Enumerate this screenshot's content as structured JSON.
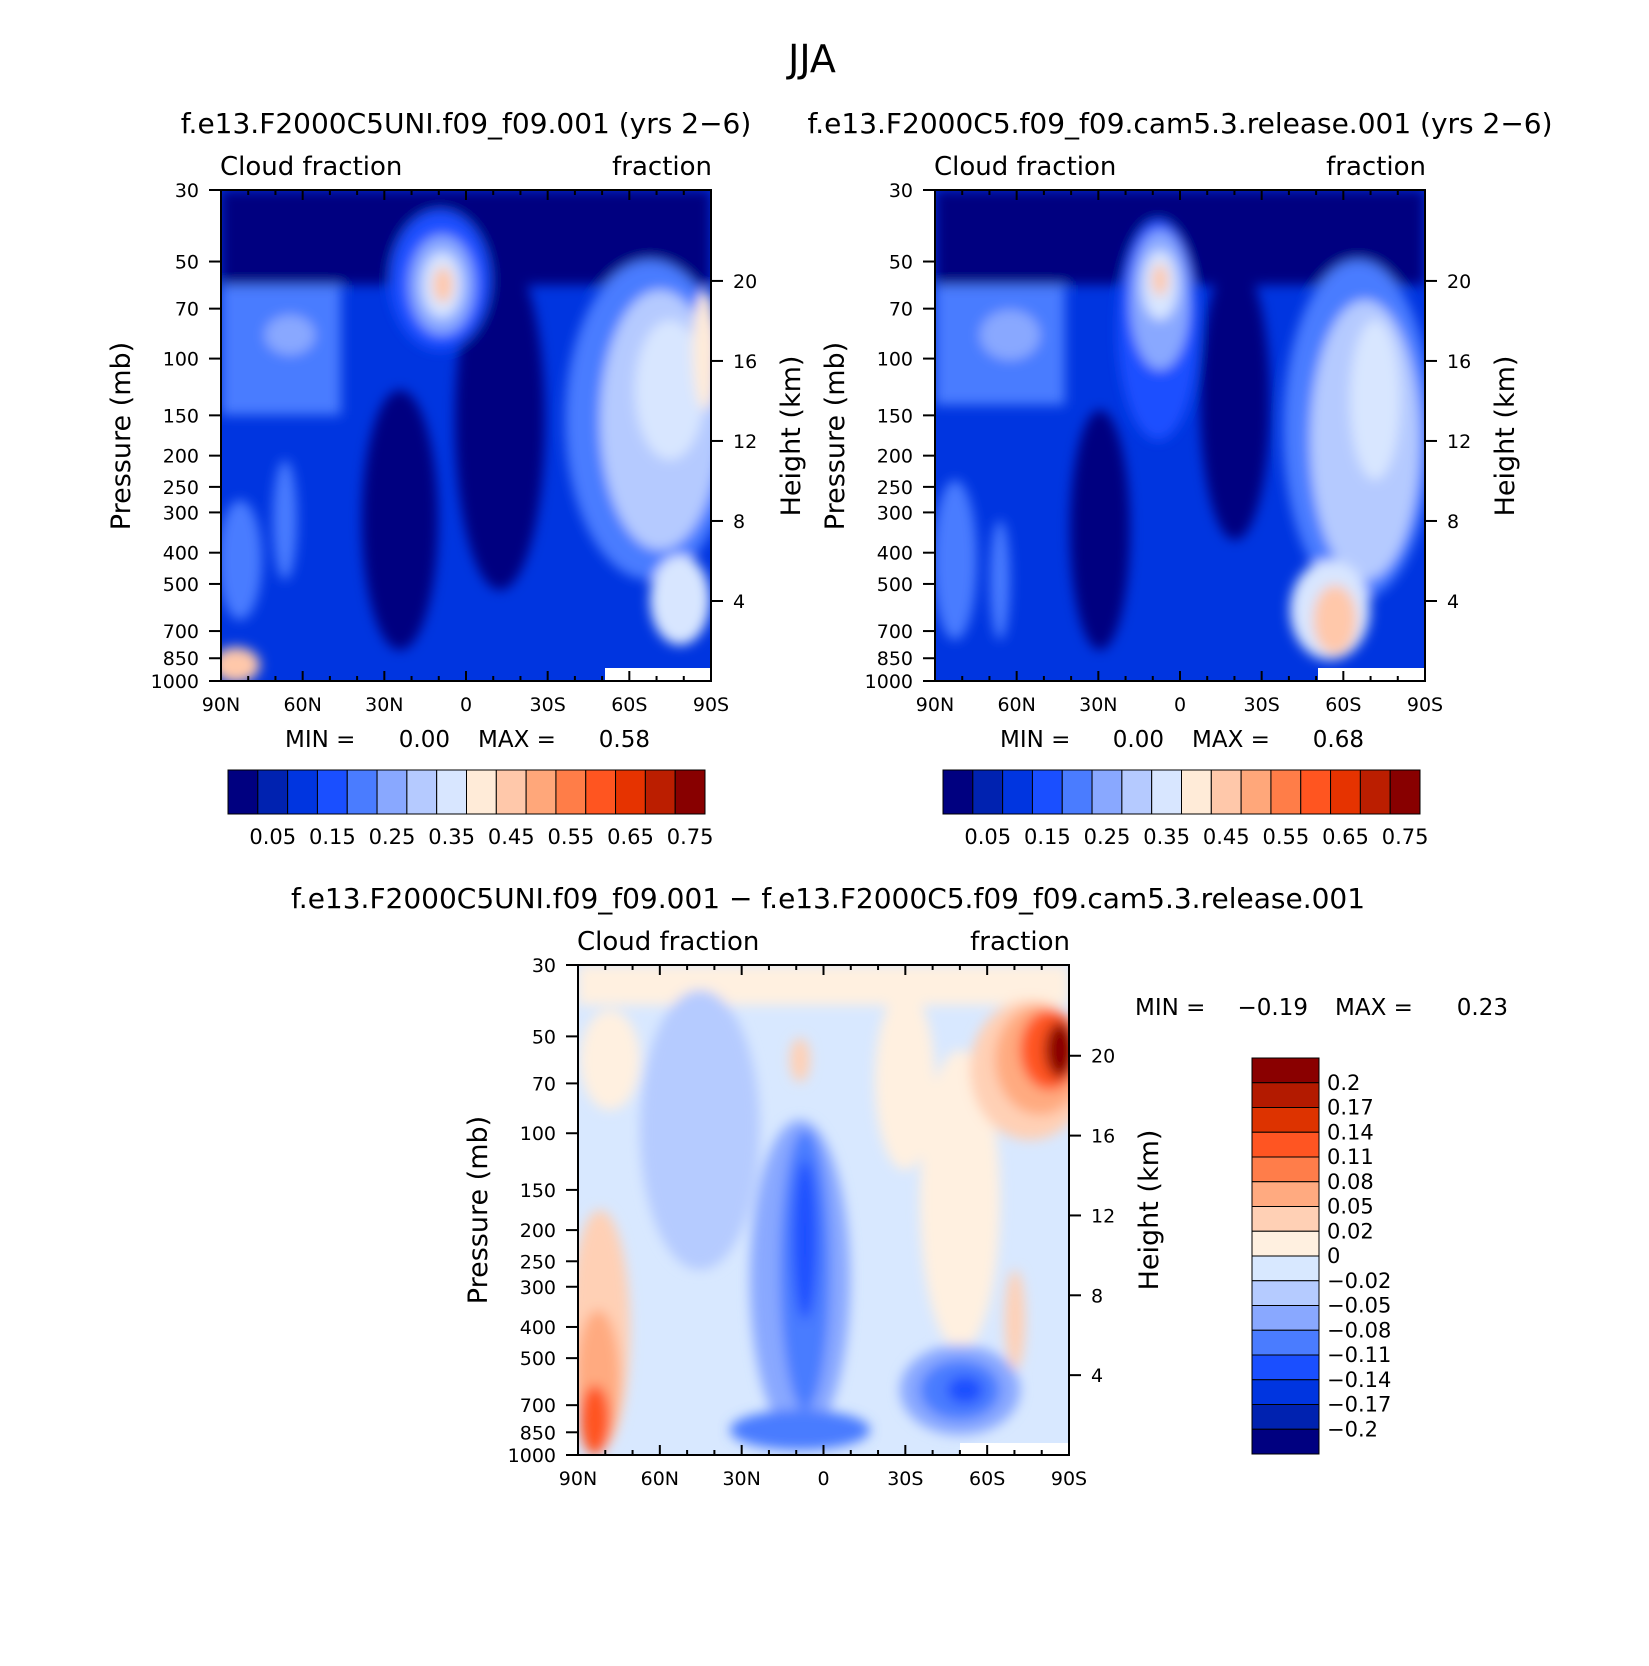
{
  "figure": {
    "title": "JJA"
  },
  "chart_data": [
    {
      "type": "heatmap",
      "title": "f.e13.F2000C5UNI.f09_f09.001 (yrs 2−6)",
      "left_subtitle": "Cloud fraction",
      "right_subtitle": "fraction",
      "ylabel": "Pressure (mb)",
      "y2label": "Height (km)",
      "xticks": [
        "90N",
        "60N",
        "30N",
        "0",
        "30S",
        "60S",
        "90S"
      ],
      "yticks": [
        "30",
        "50",
        "70",
        "100",
        "150",
        "200",
        "250",
        "300",
        "400",
        "500",
        "700",
        "850",
        "1000"
      ],
      "y2ticks": [
        "20",
        "16",
        "12",
        "8",
        "4"
      ],
      "stats": {
        "min_label": "MIN =",
        "min": "0.00",
        "max_label": "MAX =",
        "max": "0.58"
      },
      "colorbar": {
        "orientation": "horizontal",
        "labels": [
          "0.05",
          "0.15",
          "0.25",
          "0.35",
          "0.45",
          "0.55",
          "0.65",
          "0.75"
        ],
        "colors": [
          "#000080",
          "#0022b0",
          "#0035e0",
          "#1a4fff",
          "#4a7cff",
          "#89a8ff",
          "#b5caff",
          "#d8e6ff",
          "#ffebd8",
          "#ffc8aa",
          "#ffa77a",
          "#ff7d48",
          "#ff5520",
          "#e63300",
          "#bb1e00",
          "#880000"
        ]
      }
    },
    {
      "type": "heatmap",
      "title": "f.e13.F2000C5.f09_f09.cam5.3.release.001 (yrs 2−6)",
      "left_subtitle": "Cloud fraction",
      "right_subtitle": "fraction",
      "ylabel": "Pressure (mb)",
      "y2label": "Height (km)",
      "xticks": [
        "90N",
        "60N",
        "30N",
        "0",
        "30S",
        "60S",
        "90S"
      ],
      "yticks": [
        "30",
        "50",
        "70",
        "100",
        "150",
        "200",
        "250",
        "300",
        "400",
        "500",
        "700",
        "850",
        "1000"
      ],
      "y2ticks": [
        "20",
        "16",
        "12",
        "8",
        "4"
      ],
      "stats": {
        "min_label": "MIN =",
        "min": "0.00",
        "max_label": "MAX =",
        "max": "0.68"
      },
      "colorbar": {
        "orientation": "horizontal",
        "labels": [
          "0.05",
          "0.15",
          "0.25",
          "0.35",
          "0.45",
          "0.55",
          "0.65",
          "0.75"
        ],
        "colors": [
          "#000080",
          "#0022b0",
          "#0035e0",
          "#1a4fff",
          "#4a7cff",
          "#89a8ff",
          "#b5caff",
          "#d8e6ff",
          "#ffebd8",
          "#ffc8aa",
          "#ffa77a",
          "#ff7d48",
          "#ff5520",
          "#e63300",
          "#bb1e00",
          "#880000"
        ]
      }
    },
    {
      "type": "heatmap",
      "title": "f.e13.F2000C5UNI.f09_f09.001 − f.e13.F2000C5.f09_f09.cam5.3.release.001",
      "left_subtitle": "Cloud fraction",
      "right_subtitle": "fraction",
      "ylabel": "Pressure (mb)",
      "y2label": "Height (km)",
      "xticks": [
        "90N",
        "60N",
        "30N",
        "0",
        "30S",
        "60S",
        "90S"
      ],
      "yticks": [
        "30",
        "50",
        "70",
        "100",
        "150",
        "200",
        "250",
        "300",
        "400",
        "500",
        "700",
        "850",
        "1000"
      ],
      "y2ticks": [
        "20",
        "16",
        "12",
        "8",
        "4"
      ],
      "stats": {
        "min_label": "MIN =",
        "min": "−0.19",
        "max_label": "MAX =",
        "max": "0.23"
      },
      "colorbar": {
        "orientation": "vertical",
        "labels": [
          "0.2",
          "0.17",
          "0.14",
          "0.11",
          "0.08",
          "0.05",
          "0.02",
          "0",
          "−0.02",
          "−0.05",
          "−0.08",
          "−0.11",
          "−0.14",
          "−0.17",
          "−0.2"
        ],
        "colors": [
          "#8a0000",
          "#b31a00",
          "#dd3300",
          "#ff5522",
          "#ff7d4a",
          "#ffaa80",
          "#ffd0b5",
          "#fff0e0",
          "#d8e8ff",
          "#b5cbff",
          "#89a8ff",
          "#4a7cff",
          "#1a4fff",
          "#0035e0",
          "#0022b0",
          "#000080"
        ]
      }
    }
  ]
}
